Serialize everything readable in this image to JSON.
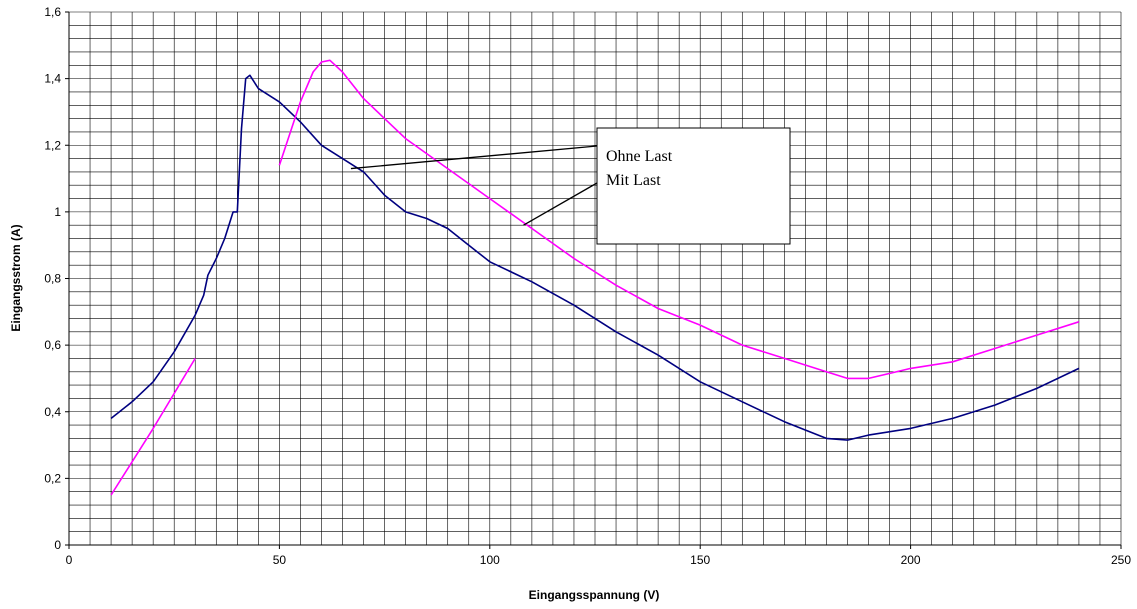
{
  "chart_data": {
    "type": "line",
    "xlabel": "Eingangsspannung (V)",
    "ylabel": "Eingangsstrom (A)",
    "xlim": [
      0,
      250
    ],
    "ylim": [
      0,
      1.6
    ],
    "x_ticks": [
      0,
      50,
      100,
      150,
      200,
      250
    ],
    "x_tick_labels": [
      "0",
      "50",
      "100",
      "150",
      "200",
      "250"
    ],
    "y_ticks": [
      0,
      0.2,
      0.4,
      0.6,
      0.8,
      1.0,
      1.2,
      1.4,
      1.6
    ],
    "y_tick_labels": [
      "0",
      "0,2",
      "0,4",
      "0,6",
      "0,8",
      "1",
      "1,2",
      "1,4",
      "1,6"
    ],
    "grid": {
      "horizontal": true,
      "vertical": true,
      "x_step": 5,
      "y_step": 0.04
    },
    "series": [
      {
        "name": "Ohne Last",
        "color": "#000080",
        "points": [
          [
            10,
            0.38
          ],
          [
            15,
            0.43
          ],
          [
            20,
            0.49
          ],
          [
            25,
            0.58
          ],
          [
            30,
            0.69
          ],
          [
            32,
            0.75
          ],
          [
            33,
            0.81
          ],
          [
            35,
            0.86
          ],
          [
            37,
            0.92
          ],
          [
            38,
            0.96
          ],
          [
            39,
            1.0
          ],
          [
            40,
            1.0
          ],
          [
            41,
            1.25
          ],
          [
            42,
            1.4
          ],
          [
            43,
            1.41
          ],
          [
            45,
            1.37
          ],
          [
            50,
            1.33
          ],
          [
            55,
            1.27
          ],
          [
            60,
            1.2
          ],
          [
            65,
            1.16
          ],
          [
            70,
            1.12
          ],
          [
            75,
            1.05
          ],
          [
            80,
            1.0
          ],
          [
            85,
            0.98
          ],
          [
            90,
            0.95
          ],
          [
            95,
            0.9
          ],
          [
            100,
            0.85
          ],
          [
            110,
            0.79
          ],
          [
            120,
            0.72
          ],
          [
            130,
            0.64
          ],
          [
            140,
            0.57
          ],
          [
            150,
            0.49
          ],
          [
            160,
            0.43
          ],
          [
            170,
            0.37
          ],
          [
            180,
            0.32
          ],
          [
            185,
            0.315
          ],
          [
            190,
            0.33
          ],
          [
            200,
            0.35
          ],
          [
            210,
            0.38
          ],
          [
            220,
            0.42
          ],
          [
            230,
            0.47
          ],
          [
            240,
            0.53
          ]
        ]
      },
      {
        "name": "Mit Last",
        "color": "#ff00ff",
        "segments": [
          [
            [
              10,
              0.15
            ],
            [
              20,
              0.35
            ],
            [
              30,
              0.56
            ]
          ],
          [
            [
              50,
              1.14
            ],
            [
              55,
              1.33
            ],
            [
              58,
              1.42
            ],
            [
              60,
              1.45
            ],
            [
              62,
              1.455
            ],
            [
              65,
              1.42
            ],
            [
              70,
              1.34
            ],
            [
              80,
              1.22
            ],
            [
              90,
              1.13
            ],
            [
              100,
              1.04
            ],
            [
              110,
              0.95
            ],
            [
              120,
              0.86
            ],
            [
              130,
              0.78
            ],
            [
              140,
              0.71
            ],
            [
              150,
              0.66
            ],
            [
              160,
              0.6
            ],
            [
              170,
              0.56
            ],
            [
              180,
              0.52
            ],
            [
              185,
              0.5
            ],
            [
              190,
              0.5
            ],
            [
              200,
              0.53
            ],
            [
              210,
              0.55
            ],
            [
              220,
              0.59
            ],
            [
              230,
              0.63
            ],
            [
              240,
              0.67
            ]
          ]
        ]
      }
    ],
    "annotations": [
      {
        "text": "Ohne Last",
        "pointer_to": [
          67,
          1.13
        ]
      },
      {
        "text": "Mit Last",
        "pointer_to": [
          108,
          0.96
        ]
      }
    ]
  }
}
